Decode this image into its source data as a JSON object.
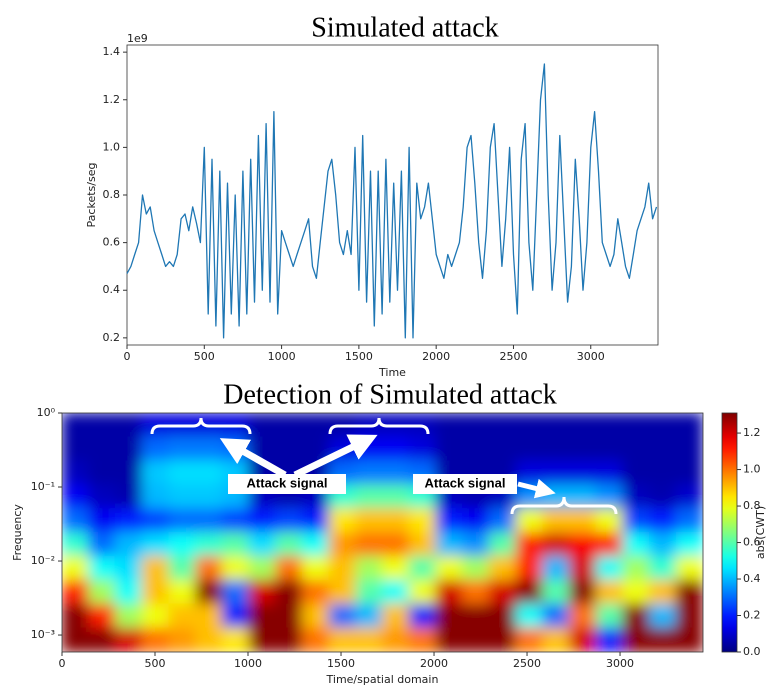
{
  "chart_data": [
    {
      "type": "line",
      "title": "Simulated attack",
      "xlabel": "Time",
      "ylabel": "Packets/seg",
      "offset_text": "1e9",
      "color": "#1f77b4",
      "x": [
        0,
        25,
        50,
        75,
        100,
        125,
        150,
        175,
        200,
        225,
        250,
        275,
        300,
        325,
        350,
        375,
        400,
        425,
        450,
        475,
        500,
        525,
        550,
        575,
        600,
        625,
        650,
        675,
        700,
        725,
        750,
        775,
        800,
        825,
        850,
        875,
        900,
        925,
        950,
        975,
        1000,
        1025,
        1050,
        1075,
        1100,
        1125,
        1150,
        1175,
        1200,
        1225,
        1250,
        1275,
        1300,
        1325,
        1350,
        1375,
        1400,
        1425,
        1450,
        1475,
        1500,
        1525,
        1550,
        1575,
        1600,
        1625,
        1650,
        1675,
        1700,
        1725,
        1750,
        1775,
        1800,
        1825,
        1850,
        1875,
        1900,
        1925,
        1950,
        1975,
        2000,
        2025,
        2050,
        2075,
        2100,
        2125,
        2150,
        2175,
        2200,
        2225,
        2250,
        2275,
        2300,
        2325,
        2350,
        2375,
        2400,
        2425,
        2450,
        2475,
        2500,
        2525,
        2550,
        2575,
        2600,
        2625,
        2650,
        2675,
        2700,
        2725,
        2750,
        2775,
        2800,
        2825,
        2850,
        2875,
        2900,
        2925,
        2950,
        2975,
        3000,
        3025,
        3050,
        3075,
        3100,
        3125,
        3150,
        3175,
        3200,
        3225,
        3250,
        3275,
        3300,
        3325,
        3350,
        3375,
        3400,
        3425
      ],
      "values": [
        0.47,
        0.5,
        0.55,
        0.6,
        0.8,
        0.72,
        0.75,
        0.65,
        0.6,
        0.55,
        0.5,
        0.52,
        0.5,
        0.55,
        0.7,
        0.72,
        0.65,
        0.75,
        0.68,
        0.6,
        1.0,
        0.3,
        0.95,
        0.25,
        0.9,
        0.2,
        0.85,
        0.3,
        0.8,
        0.25,
        0.9,
        0.3,
        0.95,
        0.35,
        1.05,
        0.4,
        1.1,
        0.35,
        1.15,
        0.3,
        0.65,
        0.6,
        0.55,
        0.5,
        0.55,
        0.6,
        0.65,
        0.7,
        0.5,
        0.45,
        0.6,
        0.75,
        0.9,
        0.95,
        0.8,
        0.6,
        0.55,
        0.65,
        0.55,
        1.0,
        0.4,
        1.05,
        0.35,
        0.9,
        0.25,
        0.9,
        0.3,
        0.95,
        0.35,
        0.85,
        0.4,
        0.9,
        0.2,
        1.0,
        0.2,
        0.85,
        0.7,
        0.75,
        0.85,
        0.7,
        0.55,
        0.5,
        0.45,
        0.55,
        0.5,
        0.55,
        0.6,
        0.75,
        1.0,
        1.05,
        0.85,
        0.6,
        0.45,
        0.65,
        1.0,
        1.1,
        0.8,
        0.5,
        0.7,
        1.0,
        0.55,
        0.3,
        0.95,
        1.1,
        0.6,
        0.4,
        0.8,
        1.2,
        1.35,
        0.8,
        0.4,
        0.6,
        1.05,
        0.7,
        0.35,
        0.5,
        0.95,
        0.7,
        0.4,
        0.6,
        1.0,
        1.15,
        0.9,
        0.6,
        0.55,
        0.5,
        0.55,
        0.7,
        0.6,
        0.5,
        0.45,
        0.55,
        0.65,
        0.7,
        0.75,
        0.85,
        0.7,
        0.75
      ],
      "xlim": [
        0,
        3435
      ],
      "xticks": [
        0,
        500,
        1000,
        1500,
        2000,
        2500,
        3000
      ],
      "ylim": [
        0.17,
        1.43
      ],
      "yticks": [
        0.2,
        0.4,
        0.6,
        0.8,
        {
          "value": 1,
          "label": "1.0"
        },
        1.2,
        1.4
      ]
    },
    {
      "type": "heatmap",
      "title": "Detection of Simulated attack",
      "xlabel": "Time/spatial domain",
      "ylabel": "Frequency",
      "colormap": "jet",
      "ylog": true,
      "clabel": "abs(CWT)",
      "xlim": [
        0,
        3446
      ],
      "xticks": [
        0,
        500,
        1000,
        1500,
        2000,
        2500,
        3000
      ],
      "ylim": [
        0.00059,
        1
      ],
      "yticks": [
        {
          "value": 1,
          "label": "10⁰"
        },
        {
          "value": 0.1,
          "label": "10⁻¹"
        },
        {
          "value": 0.01,
          "label": "10⁻²"
        },
        {
          "value": 0.001,
          "label": "10⁻³"
        }
      ],
      "clim": [
        0,
        1.31
      ],
      "cticks": [
        {
          "value": 0,
          "label": "0.0"
        },
        0.2,
        0.4,
        0.6,
        0.8,
        {
          "value": 1,
          "label": "1.0"
        },
        1.2
      ],
      "z": [
        [
          0.05,
          0.05,
          0.05,
          0.12,
          0.12,
          0.12,
          0.12,
          0.05,
          0.05,
          0.05,
          0.05,
          0.08,
          0.08,
          0.08,
          0.05,
          0.05,
          0.05,
          0.05,
          0.05,
          0.05,
          0.05,
          0.05,
          0.05,
          0.05
        ],
        [
          0.05,
          0.05,
          0.05,
          0.3,
          0.32,
          0.32,
          0.3,
          0.05,
          0.05,
          0.05,
          0.12,
          0.15,
          0.15,
          0.12,
          0.05,
          0.05,
          0.05,
          0.05,
          0.05,
          0.05,
          0.05,
          0.05,
          0.05,
          0.05
        ],
        [
          0.08,
          0.05,
          0.05,
          0.42,
          0.45,
          0.45,
          0.42,
          0.05,
          0.05,
          0.05,
          0.3,
          0.32,
          0.32,
          0.3,
          0.05,
          0.05,
          0.05,
          0.12,
          0.12,
          0.12,
          0.12,
          0.05,
          0.05,
          0.05
        ],
        [
          0.15,
          0.08,
          0.06,
          0.4,
          0.42,
          0.42,
          0.4,
          0.08,
          0.06,
          0.08,
          0.55,
          0.6,
          0.6,
          0.55,
          0.08,
          0.06,
          0.08,
          0.35,
          0.4,
          0.4,
          0.35,
          0.08,
          0.06,
          0.1
        ],
        [
          0.3,
          0.15,
          0.2,
          0.25,
          0.3,
          0.3,
          0.25,
          0.2,
          0.25,
          0.2,
          0.85,
          0.9,
          0.9,
          0.85,
          0.2,
          0.15,
          0.3,
          0.8,
          0.9,
          0.9,
          0.8,
          0.25,
          0.2,
          0.3
        ],
        [
          0.55,
          0.3,
          0.4,
          0.45,
          0.5,
          0.55,
          0.6,
          0.45,
          0.6,
          0.5,
          0.95,
          1.0,
          1.0,
          0.9,
          0.4,
          0.35,
          0.6,
          1.1,
          1.2,
          1.15,
          1.1,
          0.5,
          0.4,
          0.5
        ],
        [
          0.8,
          0.5,
          0.45,
          0.9,
          0.6,
          1.0,
          0.8,
          0.7,
          1.0,
          0.8,
          0.9,
          0.7,
          0.8,
          0.6,
          0.8,
          0.7,
          0.9,
          1.1,
          0.4,
          1.2,
          0.5,
          0.7,
          0.55,
          0.8
        ],
        [
          1.1,
          0.7,
          0.5,
          0.9,
          0.8,
          1.3,
          0.3,
          1.2,
          1.3,
          1.0,
          0.9,
          0.6,
          0.5,
          0.8,
          1.2,
          1.0,
          1.2,
          1.3,
          0.6,
          1.3,
          0.9,
          0.8,
          0.9,
          1.3
        ],
        [
          1.3,
          1.1,
          0.7,
          0.8,
          0.9,
          0.9,
          0.2,
          1.3,
          1.3,
          0.9,
          0.3,
          0.4,
          0.9,
          0.2,
          1.3,
          1.3,
          1.3,
          0.5,
          0.3,
          1.0,
          0.6,
          1.3,
          0.4,
          1.3
        ],
        [
          1.3,
          1.3,
          1.2,
          1.0,
          0.95,
          0.9,
          0.85,
          1.3,
          1.3,
          1.0,
          0.9,
          0.9,
          0.95,
          1.0,
          1.3,
          1.3,
          1.3,
          1.0,
          0.9,
          1.2,
          0.2,
          1.3,
          1.3,
          1.3
        ]
      ],
      "annotations": [
        "Attack signal",
        "Attack signal"
      ]
    }
  ]
}
